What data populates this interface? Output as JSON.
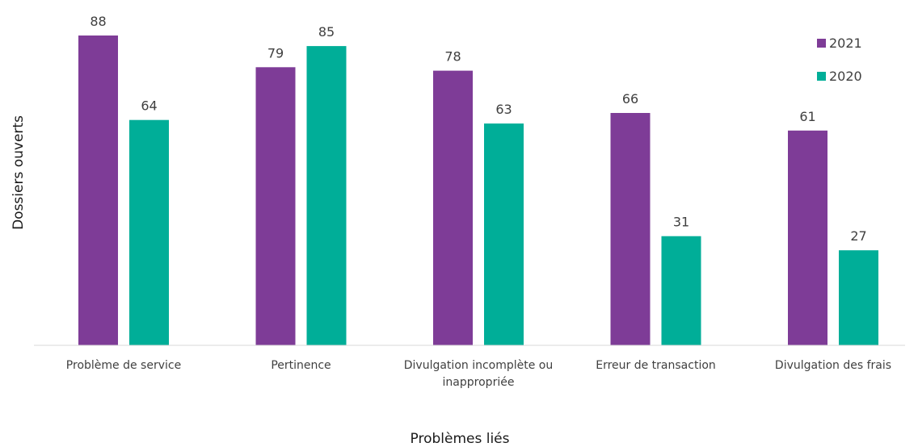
{
  "chart_data": {
    "type": "bar",
    "categories": [
      "Problème de service",
      "Pertinence",
      "Divulgation incomplète ou inappropriée",
      "Erreur de transaction",
      "Divulgation des frais"
    ],
    "category_lines": [
      [
        "Problème de service"
      ],
      [
        "Pertinence"
      ],
      [
        "Divulgation incomplète ou",
        "inappropriée"
      ],
      [
        "Erreur de transaction"
      ],
      [
        "Divulgation des frais"
      ]
    ],
    "series": [
      {
        "name": "2021",
        "color": "#7e3c97",
        "values": [
          88,
          79,
          78,
          66,
          61
        ]
      },
      {
        "name": "2020",
        "color": "#00ae98",
        "values": [
          64,
          85,
          63,
          31,
          27
        ]
      }
    ],
    "xlabel": "Problèmes liés",
    "ylabel": "Dossiers ouverts",
    "ylim": [
      0,
      88
    ],
    "grid": false,
    "legend_position": "top-right",
    "show_data_labels": true
  }
}
